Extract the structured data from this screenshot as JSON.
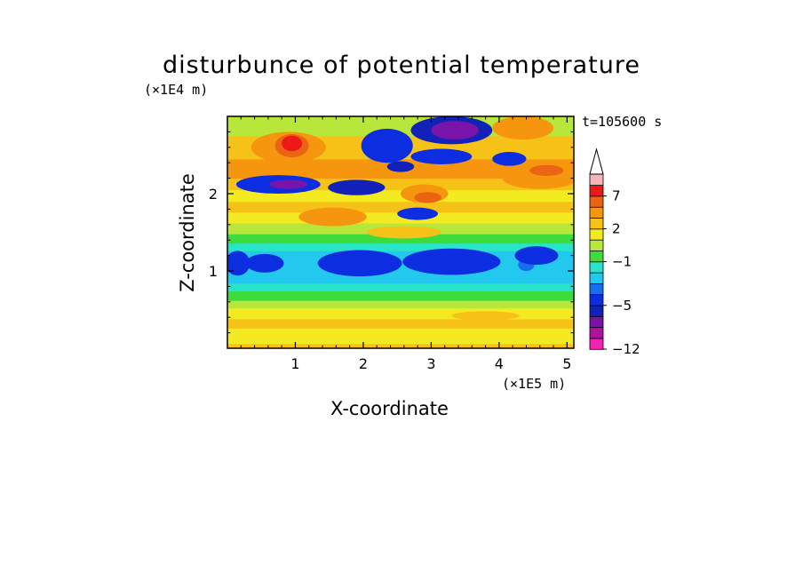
{
  "chart_data": {
    "type": "heatmap",
    "title": "disturbunce of potential temperature",
    "time_label": "t=105600 s",
    "xlabel": "X-coordinate",
    "ylabel": "Z-coordinate",
    "x_unit": "(×1E5 m)",
    "y_unit": "(×1E4 m)",
    "xlim": [
      0,
      5.1
    ],
    "ylim": [
      0,
      3.0
    ],
    "x_ticks": [
      "1",
      "2",
      "3",
      "4",
      "5"
    ],
    "y_ticks": [
      "1",
      "2"
    ],
    "colorbar": {
      "labels": [
        "7",
        "2",
        "−1",
        "−5",
        "−12"
      ],
      "label_values": [
        7,
        2,
        -1,
        -5,
        -12
      ],
      "levels": [
        -12,
        -10,
        -8,
        -6,
        -5,
        -4,
        -3,
        -2,
        -1,
        0,
        1,
        2,
        3,
        5,
        7,
        9,
        12
      ],
      "colors": [
        "#ef24b4",
        "#b0129c",
        "#7a14a8",
        "#1222b8",
        "#0c2ee0",
        "#1a6cf0",
        "#22c8ee",
        "#28e4c8",
        "#3cdc3c",
        "#b8e63a",
        "#f4ea22",
        "#f6c218",
        "#f5960e",
        "#ea6414",
        "#ee1818",
        "#f6b4b4"
      ],
      "extend_max": true
    },
    "bands": [
      {
        "z": [
          0.0,
          0.06
        ],
        "value": 2.5
      },
      {
        "z": [
          0.06,
          0.14
        ],
        "value": 1.5
      },
      {
        "z": [
          0.14,
          0.26
        ],
        "value": 1.0
      },
      {
        "z": [
          0.26,
          0.38
        ],
        "value": 2.0
      },
      {
        "z": [
          0.38,
          0.52
        ],
        "value": 1.5
      },
      {
        "z": [
          0.52,
          0.62
        ],
        "value": 0.5
      },
      {
        "z": [
          0.62,
          0.74
        ],
        "value": -0.5
      },
      {
        "z": [
          0.74,
          0.84
        ],
        "value": -1.5
      },
      {
        "z": [
          0.84,
          1.26
        ],
        "value": -2.5
      },
      {
        "z": [
          1.26,
          1.36
        ],
        "value": -1.5
      },
      {
        "z": [
          1.36,
          1.48
        ],
        "value": -0.5
      },
      {
        "z": [
          1.48,
          1.62
        ],
        "value": 0.5
      },
      {
        "z": [
          1.62,
          1.76
        ],
        "value": 1.5
      },
      {
        "z": [
          1.76,
          1.9
        ],
        "value": 2.5
      },
      {
        "z": [
          1.9,
          2.05
        ],
        "value": 1.5
      },
      {
        "z": [
          2.05,
          2.2
        ],
        "value": 2.5
      },
      {
        "z": [
          2.2,
          2.45
        ],
        "value": 4.0
      },
      {
        "z": [
          2.45,
          2.75
        ],
        "value": 2.5
      },
      {
        "z": [
          2.75,
          3.0
        ],
        "value": 0.5
      }
    ],
    "features": [
      {
        "cx": 4.4,
        "cz": 1.08,
        "rx": 0.12,
        "rz": 0.08,
        "value": -3.5
      },
      {
        "cx": 0.15,
        "cz": 1.1,
        "rx": 0.18,
        "rz": 0.16,
        "value": -4.5
      },
      {
        "cx": 0.55,
        "cz": 1.1,
        "rx": 0.28,
        "rz": 0.12,
        "value": -4.5
      },
      {
        "cx": 1.95,
        "cz": 1.1,
        "rx": 0.62,
        "rz": 0.17,
        "value": -4.5
      },
      {
        "cx": 3.3,
        "cz": 1.12,
        "rx": 0.72,
        "rz": 0.17,
        "value": -4.5
      },
      {
        "cx": 4.55,
        "cz": 1.2,
        "rx": 0.32,
        "rz": 0.12,
        "value": -4.5
      },
      {
        "cx": 0.75,
        "cz": 2.12,
        "rx": 0.62,
        "rz": 0.12,
        "value": -4.5
      },
      {
        "cx": 1.9,
        "cz": 2.08,
        "rx": 0.42,
        "rz": 0.1,
        "value": -5.5
      },
      {
        "cx": 2.35,
        "cz": 2.62,
        "rx": 0.38,
        "rz": 0.22,
        "value": -4.5
      },
      {
        "cx": 3.3,
        "cz": 2.82,
        "rx": 0.6,
        "rz": 0.18,
        "value": -5.5
      },
      {
        "cx": 3.15,
        "cz": 2.48,
        "rx": 0.45,
        "rz": 0.1,
        "value": -5.0
      },
      {
        "cx": 4.15,
        "cz": 2.45,
        "rx": 0.25,
        "rz": 0.09,
        "value": -5.0
      },
      {
        "cx": 2.8,
        "cz": 1.74,
        "rx": 0.3,
        "rz": 0.08,
        "value": -5.0
      },
      {
        "cx": 2.55,
        "cz": 2.35,
        "rx": 0.2,
        "rz": 0.07,
        "value": -5.5
      },
      {
        "cx": 0.9,
        "cz": 2.12,
        "rx": 0.28,
        "rz": 0.06,
        "value": -7.0
      },
      {
        "cx": 3.35,
        "cz": 2.82,
        "rx": 0.35,
        "rz": 0.12,
        "value": -7.0
      },
      {
        "cx": 0.9,
        "cz": 2.6,
        "rx": 0.55,
        "rz": 0.2,
        "value": 4.0
      },
      {
        "cx": 0.95,
        "cz": 2.62,
        "rx": 0.25,
        "rz": 0.15,
        "value": 6.0
      },
      {
        "cx": 0.95,
        "cz": 2.65,
        "rx": 0.15,
        "rz": 0.1,
        "value": 8.0
      },
      {
        "cx": 2.9,
        "cz": 2.0,
        "rx": 0.35,
        "rz": 0.12,
        "value": 4.0
      },
      {
        "cx": 2.95,
        "cz": 1.95,
        "rx": 0.2,
        "rz": 0.07,
        "value": 6.0
      },
      {
        "cx": 4.6,
        "cz": 2.2,
        "rx": 0.55,
        "rz": 0.14,
        "value": 4.0
      },
      {
        "cx": 4.7,
        "cz": 2.3,
        "rx": 0.25,
        "rz": 0.07,
        "value": 6.0
      },
      {
        "cx": 4.35,
        "cz": 2.85,
        "rx": 0.45,
        "rz": 0.15,
        "value": 4.0
      },
      {
        "cx": 1.55,
        "cz": 1.7,
        "rx": 0.5,
        "rz": 0.12,
        "value": 4.0
      },
      {
        "cx": 0.65,
        "cz": 2.35,
        "rx": 0.35,
        "rz": 0.08,
        "value": 4.0
      },
      {
        "cx": 2.6,
        "cz": 1.5,
        "rx": 0.55,
        "rz": 0.08,
        "value": 2.5
      },
      {
        "cx": 3.8,
        "cz": 0.42,
        "rx": 0.5,
        "rz": 0.06,
        "value": 2.5
      }
    ]
  }
}
